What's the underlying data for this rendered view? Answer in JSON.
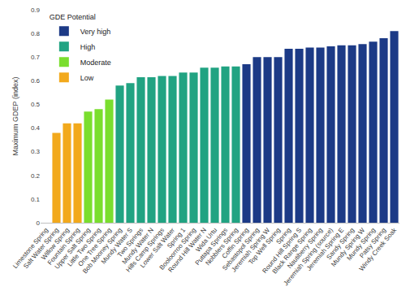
{
  "chart_data": {
    "type": "bar",
    "categories": [
      "Limestone Spring",
      "Salt Water Spring",
      "Willow Spring",
      "Fountain Spring",
      "Upper Salt Spring",
      "Little Two Spring",
      "One Tree Spring",
      "Bob Mooney Spring",
      "Mundy Water S",
      "Two Springs",
      "Mundy Water N",
      "Hills Camp Springs",
      "Lower Salt Water",
      "Spring 1",
      "Booloorroo Spring",
      "Round Hill Water N",
      "Wida Urtu",
      "Puttapa Springs",
      "Nobblers Spring",
      "Coffin Spring",
      "Sebastopol Spring",
      "Jeremiah Spring W",
      "Top Well Spring",
      "Spring",
      "Round Hill Spring S",
      "Black Range Spring",
      "Nautiberry Spring",
      "Jeremiah Spring (source)",
      "Jeremiah Spring E",
      "Sandy Spring",
      "Mundy Spring W",
      "Mundy Spring",
      "Patsy Spring",
      "Windy Creek Soak"
    ],
    "series": [
      {
        "name": "Low",
        "color": "#f2a91c",
        "values": [
          null,
          0.38,
          0.42,
          0.42,
          null,
          null,
          null,
          null,
          null,
          null,
          null,
          null,
          null,
          null,
          null,
          null,
          null,
          null,
          null,
          null,
          null,
          null,
          null,
          null,
          null,
          null,
          null,
          null,
          null,
          null,
          null,
          null,
          null,
          null
        ]
      },
      {
        "name": "Moderate",
        "color": "#7ade2e",
        "values": [
          null,
          null,
          null,
          null,
          0.47,
          0.48,
          0.52,
          null,
          null,
          null,
          null,
          null,
          null,
          null,
          null,
          null,
          null,
          null,
          null,
          null,
          null,
          null,
          null,
          null,
          null,
          null,
          null,
          null,
          null,
          null,
          null,
          null,
          null,
          null
        ]
      },
      {
        "name": "High",
        "color": "#21a382",
        "values": [
          null,
          null,
          null,
          null,
          null,
          null,
          null,
          0.58,
          0.59,
          0.615,
          0.615,
          0.62,
          0.62,
          0.635,
          0.635,
          0.655,
          0.655,
          0.66,
          0.66,
          null,
          null,
          null,
          null,
          null,
          null,
          null,
          null,
          null,
          null,
          null,
          null,
          null,
          null,
          null
        ]
      },
      {
        "name": "Very high",
        "color": "#1c3a86",
        "values": [
          null,
          null,
          null,
          null,
          null,
          null,
          null,
          null,
          null,
          null,
          null,
          null,
          null,
          null,
          null,
          null,
          null,
          null,
          null,
          0.67,
          0.7,
          0.7,
          0.7,
          0.735,
          0.735,
          0.74,
          0.74,
          0.745,
          0.75,
          0.75,
          0.755,
          0.765,
          0.78,
          0.81
        ]
      }
    ],
    "y_label": "Maximum GDEP (index)",
    "legend_title": "GDE Potential",
    "legend": "top-left",
    "ylim": [
      0,
      0.9
    ],
    "yticks": [
      0,
      0.1,
      0.2,
      0.3,
      0.4,
      0.5,
      0.6,
      0.7,
      0.8,
      0.9
    ],
    "grid": false,
    "stacked": false
  }
}
